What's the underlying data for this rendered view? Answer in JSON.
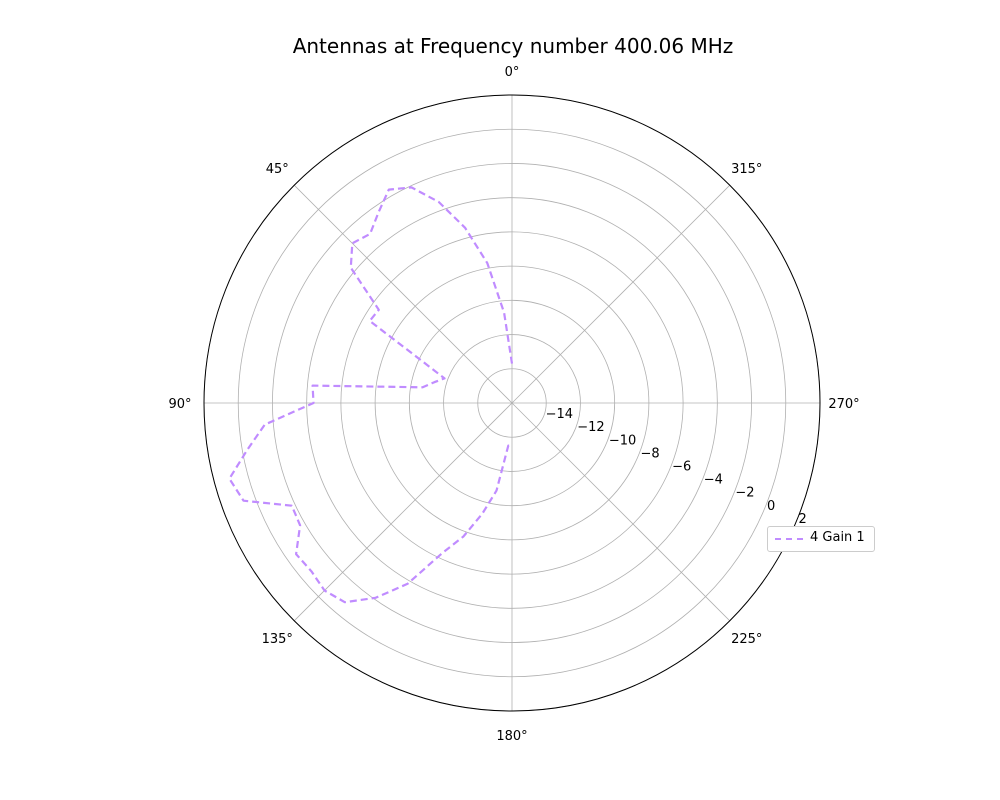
{
  "chart_data": {
    "type": "line",
    "projection": "polar",
    "title": "Antennas at Frequency number 400.06 MHz",
    "theta_direction": "counter-clockwise",
    "theta_zero": "top",
    "theta_ticks": [
      "0°",
      "45°",
      "90°",
      "135°",
      "180°",
      "225°",
      "270°",
      "315°"
    ],
    "r_ticks": [
      "−14",
      "−12",
      "−10",
      "−8",
      "−6",
      "−4",
      "−2",
      "0",
      "2"
    ],
    "r_tick_values": [
      -14,
      -12,
      -10,
      -8,
      -6,
      -4,
      -2,
      0,
      2
    ],
    "rlim": [
      -16,
      2
    ],
    "grid": true,
    "legend_position": "right",
    "series": [
      {
        "name": "4 Gain 1",
        "color": "#c08cff",
        "linestyle": "dashed",
        "theta_deg": [
          0,
          5,
          10,
          15,
          20,
          25,
          30,
          35,
          40,
          45,
          50,
          55,
          60,
          65,
          70,
          75,
          80,
          85,
          90,
          95,
          100,
          105,
          110,
          115,
          120,
          125,
          130,
          135,
          140,
          145,
          150,
          155,
          160,
          165,
          170,
          175,
          180
        ],
        "r": [
          -13.7,
          -10.7,
          -7.7,
          -5.4,
          -3.5,
          -2.1,
          -1.6,
          -2.4,
          -3.1,
          -2.8,
          -3.7,
          -6.5,
          -6.4,
          -10.2,
          -11.8,
          -11.3,
          -10.7,
          -4.3,
          -4.4,
          -1.5,
          -0.3,
          1.1,
          0.7,
          -1.8,
          -1.7,
          -0.6,
          -0.7,
          -0.5,
          -0.8,
          -2.1,
          -3.8,
          -6.3,
          -7.7,
          -9.3,
          -10.8,
          -13.5,
          -13.4
        ]
      }
    ]
  }
}
